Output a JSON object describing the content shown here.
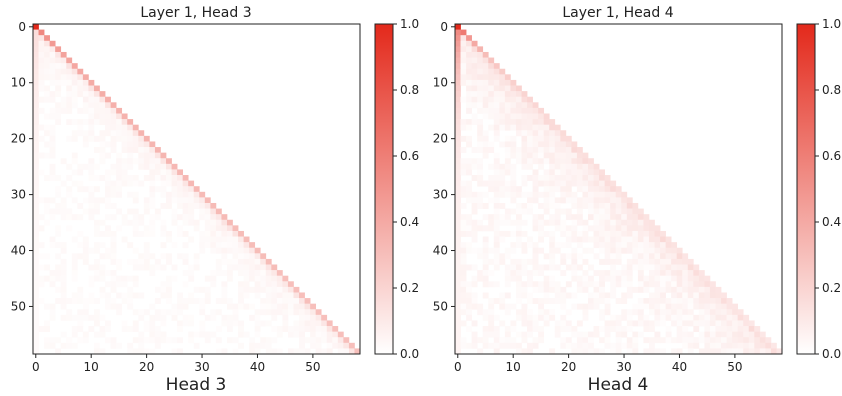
{
  "chart_data": [
    {
      "type": "heatmap",
      "title": "Layer 1, Head 3",
      "xlabel": "Head 3",
      "ylabel": "",
      "n": 59,
      "xlim": [
        -0.5,
        58.5
      ],
      "ylim": [
        58.5,
        -0.5
      ],
      "xticks": [
        0,
        10,
        20,
        30,
        40,
        50
      ],
      "yticks": [
        0,
        10,
        20,
        30,
        40,
        50
      ],
      "mask": "lower-triangular (causal): cells with col > row are empty",
      "pattern": "strong diagonal; first column weights decay from 1.0 at row 0",
      "diagonal_values": [
        1.0,
        0.56,
        0.5,
        0.47,
        0.45,
        0.43,
        0.42,
        0.41,
        0.4,
        0.39,
        0.39,
        0.38,
        0.38,
        0.37,
        0.37,
        0.36,
        0.36,
        0.36,
        0.35,
        0.35,
        0.35,
        0.34,
        0.34,
        0.34,
        0.34,
        0.33,
        0.33,
        0.33,
        0.33,
        0.33,
        0.32,
        0.32,
        0.32,
        0.32,
        0.32,
        0.32,
        0.31,
        0.31,
        0.31,
        0.31,
        0.31,
        0.31,
        0.31,
        0.31,
        0.3,
        0.3,
        0.3,
        0.3,
        0.3,
        0.3,
        0.3,
        0.3,
        0.3,
        0.3,
        0.3,
        0.3,
        0.3,
        0.3,
        0.3
      ],
      "colorbar": {
        "min": 0.0,
        "max": 1.0,
        "ticks": [
          0.0,
          0.2,
          0.4,
          0.6,
          0.8,
          1.0
        ],
        "tick_labels": [
          "0.0",
          "0.2",
          "0.4",
          "0.6",
          "0.8",
          "1.0"
        ]
      },
      "colormap": [
        "#ffffff",
        "#e3291b"
      ]
    },
    {
      "type": "heatmap",
      "title": "Layer 1, Head 4",
      "xlabel": "Head 4",
      "ylabel": "",
      "n": 59,
      "xlim": [
        -0.5,
        58.5
      ],
      "ylim": [
        58.5,
        -0.5
      ],
      "xticks": [
        0,
        10,
        20,
        30,
        40,
        50
      ],
      "yticks": [
        0,
        10,
        20,
        30,
        40,
        50
      ],
      "mask": "lower-triangular (causal): cells with col > row are empty",
      "pattern": "weak diagonal; strong first column near top; dimmer overall",
      "diagonal_values": [
        1.0,
        0.62,
        0.48,
        0.4,
        0.35,
        0.31,
        0.28,
        0.26,
        0.24,
        0.23,
        0.22,
        0.21,
        0.2,
        0.19,
        0.19,
        0.18,
        0.18,
        0.17,
        0.17,
        0.17,
        0.16,
        0.16,
        0.16,
        0.15,
        0.15,
        0.15,
        0.15,
        0.14,
        0.14,
        0.14,
        0.14,
        0.14,
        0.14,
        0.13,
        0.13,
        0.13,
        0.13,
        0.13,
        0.13,
        0.13,
        0.13,
        0.12,
        0.12,
        0.12,
        0.12,
        0.12,
        0.12,
        0.12,
        0.12,
        0.12,
        0.12,
        0.12,
        0.12,
        0.11,
        0.11,
        0.11,
        0.11,
        0.11,
        0.11
      ],
      "colorbar": {
        "min": 0.0,
        "max": 1.0,
        "ticks": [
          0.0,
          0.2,
          0.4,
          0.6,
          0.8,
          1.0
        ],
        "tick_labels": [
          "0.0",
          "0.2",
          "0.4",
          "0.6",
          "0.8",
          "1.0"
        ]
      },
      "colormap": [
        "#ffffff",
        "#e3291b"
      ]
    }
  ]
}
